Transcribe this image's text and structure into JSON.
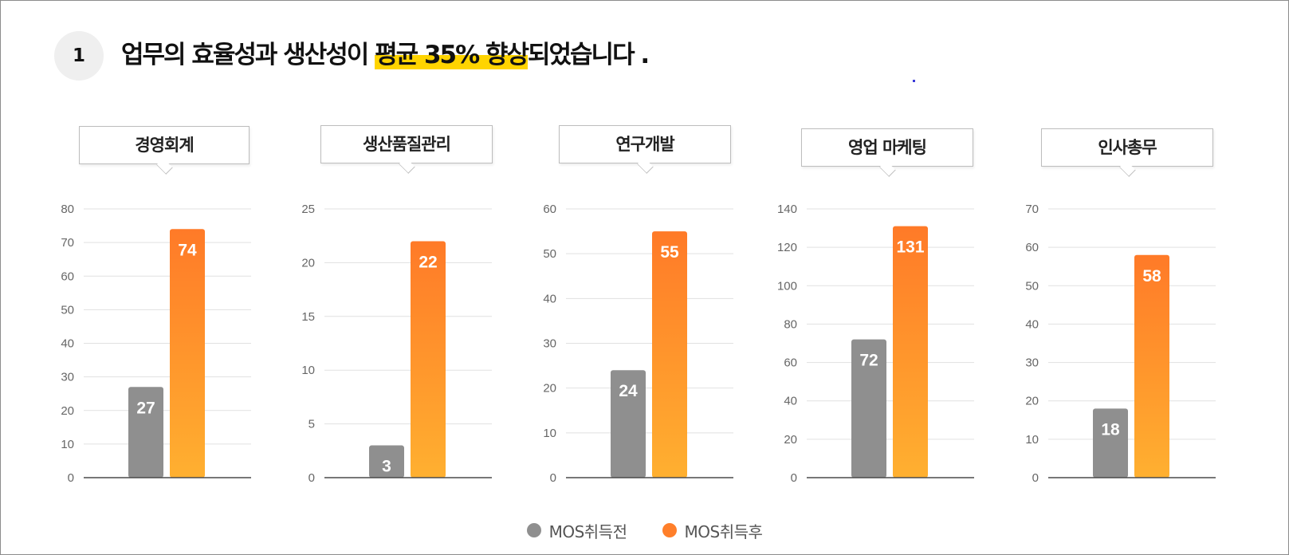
{
  "header": {
    "number": "1",
    "headline_before": "업무의 효율성과 생산성이 ",
    "headline_highlight": "평균 35% 향상",
    "headline_after": "되었습니다 ."
  },
  "colors": {
    "before": "#8f8f8f",
    "after_top": "#ff7a28",
    "after_bottom": "#ffb030",
    "highlight": "#ffd400"
  },
  "legend": [
    {
      "label": "MOS취득전",
      "color": "#8f8f8f"
    },
    {
      "label": "MOS취득후",
      "color": "#ff7f2a"
    }
  ],
  "chart_data": [
    {
      "type": "bar",
      "title": "경영회계",
      "series": [
        {
          "name": "MOS취득전",
          "values": [
            27
          ]
        },
        {
          "name": "MOS취득후",
          "values": [
            74
          ]
        }
      ],
      "ylim": [
        0,
        80
      ],
      "yticks": [
        0,
        10,
        20,
        30,
        40,
        50,
        60,
        70,
        80
      ],
      "grid": true,
      "legend": "bottom"
    },
    {
      "type": "bar",
      "title": "생산품질관리",
      "series": [
        {
          "name": "MOS취득전",
          "values": [
            3
          ]
        },
        {
          "name": "MOS취득후",
          "values": [
            22
          ]
        }
      ],
      "ylim": [
        0,
        25
      ],
      "yticks": [
        0,
        5,
        10,
        15,
        20,
        25
      ],
      "grid": true,
      "legend": "bottom"
    },
    {
      "type": "bar",
      "title": "연구개발",
      "series": [
        {
          "name": "MOS취득전",
          "values": [
            24
          ]
        },
        {
          "name": "MOS취득후",
          "values": [
            55
          ]
        }
      ],
      "ylim": [
        0,
        60
      ],
      "yticks": [
        0,
        10,
        20,
        30,
        40,
        50,
        60
      ],
      "grid": true,
      "legend": "bottom"
    },
    {
      "type": "bar",
      "title": "영업 마케팅",
      "series": [
        {
          "name": "MOS취득전",
          "values": [
            72
          ]
        },
        {
          "name": "MOS취득후",
          "values": [
            131
          ]
        }
      ],
      "ylim": [
        0,
        140
      ],
      "yticks": [
        0,
        20,
        40,
        60,
        80,
        100,
        120,
        140
      ],
      "grid": true,
      "legend": "bottom"
    },
    {
      "type": "bar",
      "title": "인사총무",
      "series": [
        {
          "name": "MOS취득전",
          "values": [
            18
          ]
        },
        {
          "name": "MOS취득후",
          "values": [
            58
          ]
        }
      ],
      "ylim": [
        0,
        70
      ],
      "yticks": [
        0,
        10,
        20,
        30,
        40,
        50,
        60,
        70
      ],
      "grid": true,
      "legend": "bottom"
    }
  ]
}
